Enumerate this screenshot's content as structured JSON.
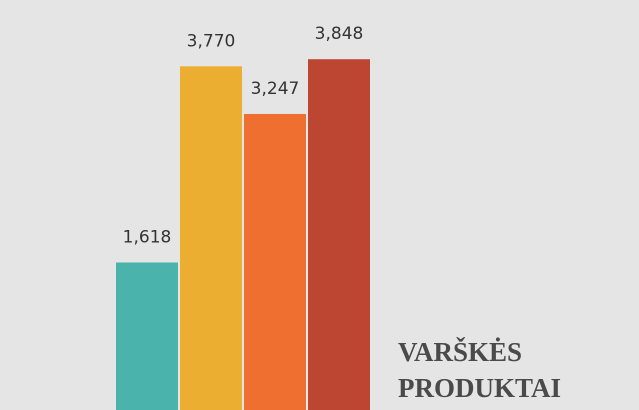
{
  "chart_data": {
    "type": "bar",
    "title": "VARŠKĖS PRODUKTAI",
    "categories": [
      null,
      null,
      null,
      null
    ],
    "values": [
      1618,
      3770,
      3247,
      3848
    ],
    "value_labels": [
      "1,618",
      "3,770",
      "3,247",
      "3,848"
    ],
    "colors": [
      "#4ab3ac",
      "#ebae30",
      "#ee6f30",
      "#bd4632"
    ],
    "ylim": [
      0,
      4300
    ]
  }
}
